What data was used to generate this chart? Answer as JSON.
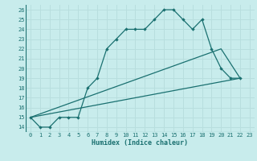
{
  "xlabel": "Humidex (Indice chaleur)",
  "xlim": [
    -0.5,
    23.5
  ],
  "ylim": [
    13.5,
    26.5
  ],
  "xticks": [
    0,
    1,
    2,
    3,
    4,
    5,
    6,
    7,
    8,
    9,
    10,
    11,
    12,
    13,
    14,
    15,
    16,
    17,
    18,
    19,
    20,
    21,
    22,
    23
  ],
  "yticks": [
    14,
    15,
    16,
    17,
    18,
    19,
    20,
    21,
    22,
    23,
    24,
    25,
    26
  ],
  "bg_color": "#c8ecec",
  "grid_color": "#b8dede",
  "line_color": "#1a7070",
  "main_line": {
    "x": [
      0,
      1,
      2,
      3,
      4,
      5,
      6,
      7,
      8,
      9,
      10,
      11,
      12,
      13,
      14,
      15,
      16,
      17,
      18,
      19,
      20,
      21,
      22
    ],
    "y": [
      15,
      14,
      14,
      15,
      15,
      15,
      18,
      19,
      22,
      23,
      24,
      24,
      24,
      25,
      26,
      26,
      25,
      24,
      25,
      22,
      20,
      19,
      19
    ]
  },
  "line2": {
    "x": [
      0,
      22
    ],
    "y": [
      15,
      19
    ]
  },
  "line3": {
    "x": [
      0,
      20,
      22
    ],
    "y": [
      15,
      22,
      19
    ]
  }
}
